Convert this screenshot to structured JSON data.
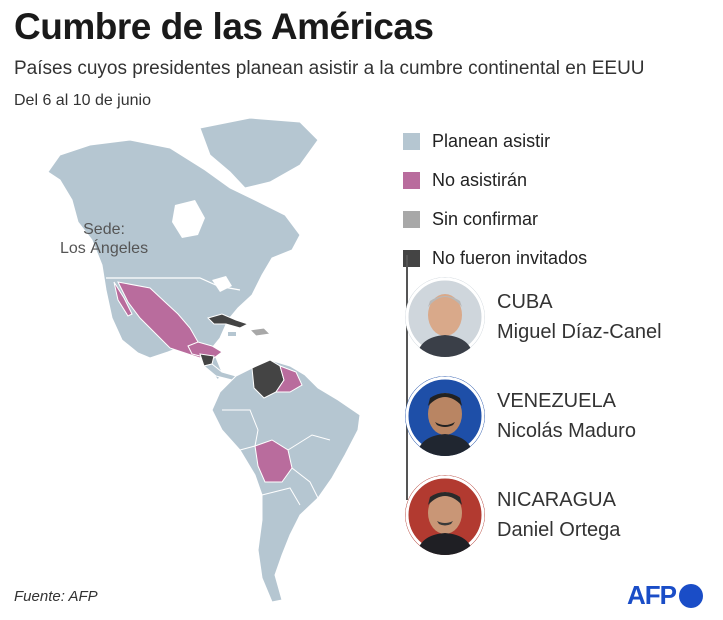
{
  "header": {
    "title": "Cumbre de las Américas",
    "subtitle": "Países cuyos presidentes planean asistir a la cumbre continental en EEUU",
    "dates": "Del 6 al 10 de junio"
  },
  "map": {
    "sede_line1": "Sede:",
    "sede_line2": "Los Ángeles",
    "colors": {
      "attend": "#b5c6d1",
      "not_attend": "#b96c9d",
      "unconfirmed": "#a8a8a8",
      "not_invited": "#444444",
      "border": "#ffffff"
    }
  },
  "legend": {
    "items": [
      {
        "label": "Planean asistir",
        "color": "#b5c6d1"
      },
      {
        "label": "No asistirán",
        "color": "#b96c9d"
      },
      {
        "label": "Sin confirmar",
        "color": "#a8a8a8"
      },
      {
        "label": "No fueron invitados",
        "color": "#444444"
      }
    ]
  },
  "leaders": [
    {
      "country": "CUBA",
      "name": "Miguel Díaz-Canel"
    },
    {
      "country": "VENEZUELA",
      "name": "Nicolás Maduro"
    },
    {
      "country": "NICARAGUA",
      "name": "Daniel Ortega"
    }
  ],
  "footer": {
    "source": "Fuente: AFP",
    "logo": "AFP"
  }
}
